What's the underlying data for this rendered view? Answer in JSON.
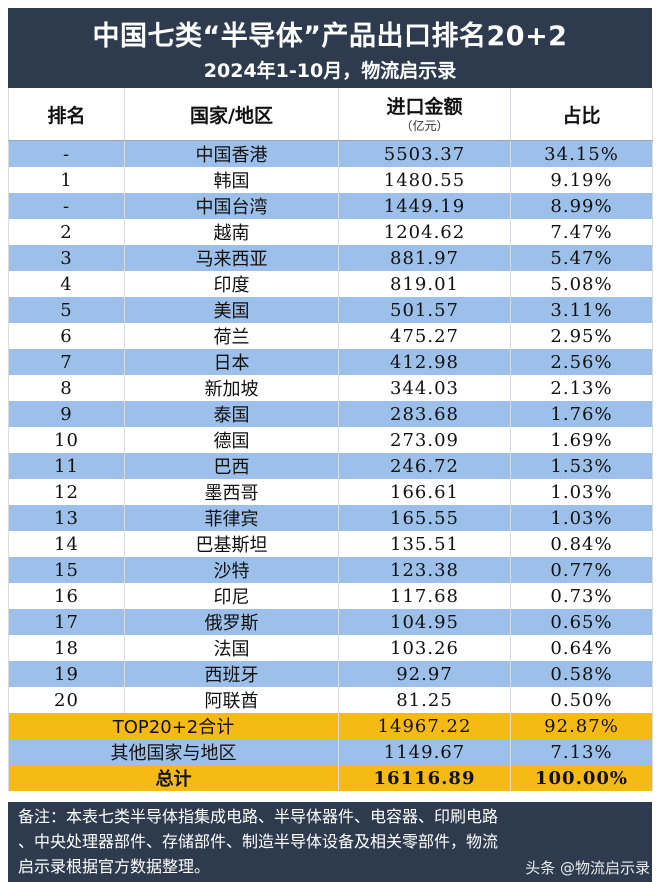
{
  "title": "中国七类“半导体”产品出口排名20+2",
  "subtitle": "2024年1-10月，物流启示录",
  "headers": {
    "rank": "排名",
    "region": "国家/地区",
    "amount": "进口金额",
    "amount_unit": "（亿元）",
    "share": "占比"
  },
  "rows": [
    {
      "rank": "-",
      "region": "中国香港",
      "amount": "5503.37",
      "share": "34.15%"
    },
    {
      "rank": "1",
      "region": "韩国",
      "amount": "1480.55",
      "share": "9.19%"
    },
    {
      "rank": "-",
      "region": "中国台湾",
      "amount": "1449.19",
      "share": "8.99%"
    },
    {
      "rank": "2",
      "region": "越南",
      "amount": "1204.62",
      "share": "7.47%"
    },
    {
      "rank": "3",
      "region": "马来西亚",
      "amount": "881.97",
      "share": "5.47%"
    },
    {
      "rank": "4",
      "region": "印度",
      "amount": "819.01",
      "share": "5.08%"
    },
    {
      "rank": "5",
      "region": "美国",
      "amount": "501.57",
      "share": "3.11%"
    },
    {
      "rank": "6",
      "region": "荷兰",
      "amount": "475.27",
      "share": "2.95%"
    },
    {
      "rank": "7",
      "region": "日本",
      "amount": "412.98",
      "share": "2.56%"
    },
    {
      "rank": "8",
      "region": "新加坡",
      "amount": "344.03",
      "share": "2.13%"
    },
    {
      "rank": "9",
      "region": "泰国",
      "amount": "283.68",
      "share": "1.76%"
    },
    {
      "rank": "10",
      "region": "德国",
      "amount": "273.09",
      "share": "1.69%"
    },
    {
      "rank": "11",
      "region": "巴西",
      "amount": "246.72",
      "share": "1.53%"
    },
    {
      "rank": "12",
      "region": "墨西哥",
      "amount": "166.61",
      "share": "1.03%"
    },
    {
      "rank": "13",
      "region": "菲律宾",
      "amount": "165.55",
      "share": "1.03%"
    },
    {
      "rank": "14",
      "region": "巴基斯坦",
      "amount": "135.51",
      "share": "0.84%"
    },
    {
      "rank": "15",
      "region": "沙特",
      "amount": "123.38",
      "share": "0.77%"
    },
    {
      "rank": "16",
      "region": "印尼",
      "amount": "117.68",
      "share": "0.73%"
    },
    {
      "rank": "17",
      "region": "俄罗斯",
      "amount": "104.95",
      "share": "0.65%"
    },
    {
      "rank": "18",
      "region": "法国",
      "amount": "103.26",
      "share": "0.64%"
    },
    {
      "rank": "19",
      "region": "西班牙",
      "amount": "92.97",
      "share": "0.58%"
    },
    {
      "rank": "20",
      "region": "阿联酋",
      "amount": "81.25",
      "share": "0.50%"
    }
  ],
  "summary": {
    "top_label": "TOP20+2合计",
    "top_amount": "14967.22",
    "top_share": "92.87%",
    "other_label": "其他国家与地区",
    "other_amount": "1149.67",
    "other_share": "7.13%",
    "total_label": "总计",
    "total_amount": "16116.89",
    "total_share": "100.00%"
  },
  "note": {
    "line1": "备注：本表七类半导体指集成电路、半导体器件、电容器、印刷电路",
    "line2": "、中央处理器部件、存储部件、制造半导体设备及相关零部件，物流",
    "line3": "启示录根据官方数据整理。"
  },
  "watermark": "头条 @物流启示录",
  "colors": {
    "header_bg": "#2e3b4e",
    "row_blue": "#9cc0ea",
    "row_gold": "#f5ba14",
    "row_white": "#ffffff"
  }
}
